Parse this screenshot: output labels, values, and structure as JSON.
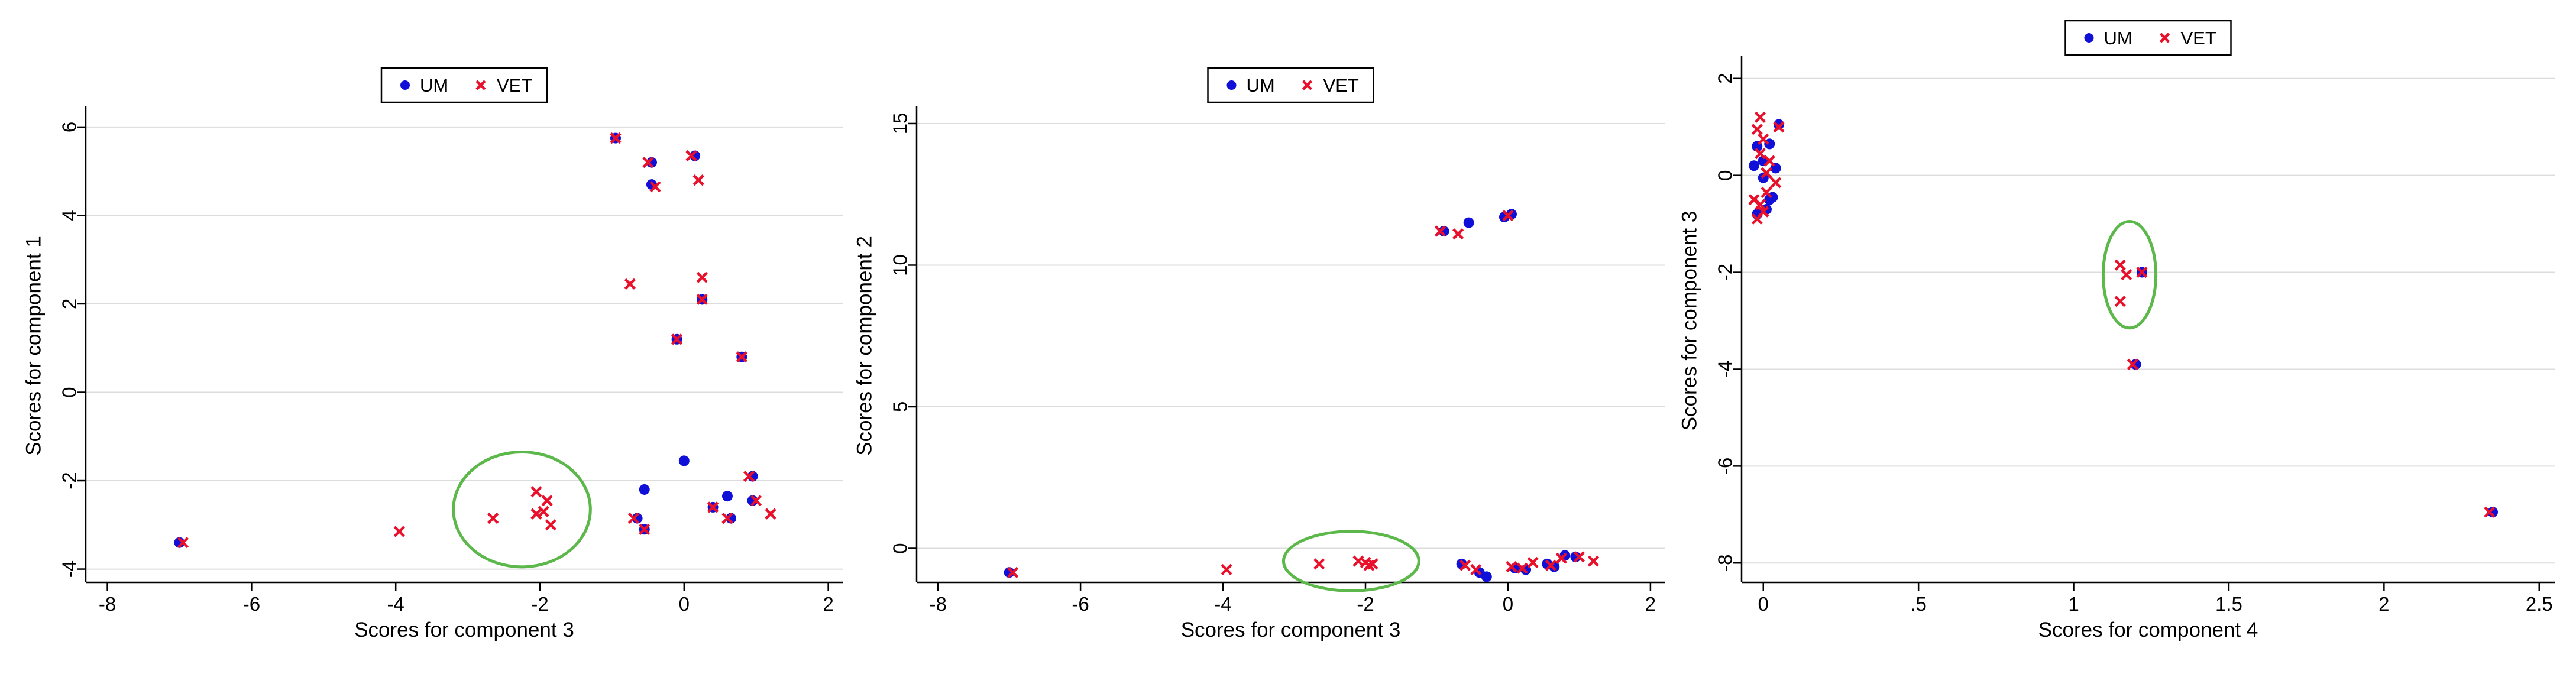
{
  "colors": {
    "um": "#1010d8",
    "vet": "#e8102a",
    "ellipse": "#5cb84a",
    "grid": "#dcdcdc",
    "axis": "#000000"
  },
  "legend_labels": {
    "um": "UM",
    "vet": "VET"
  },
  "chart_data": [
    {
      "type": "scatter",
      "xlabel": "Scores for component 3",
      "ylabel": "Scores for component 1",
      "xlim": [
        -8.3,
        2.2
      ],
      "ylim": [
        -4.3,
        6.4
      ],
      "xticks": [
        -8,
        -6,
        -4,
        -2,
        0,
        2
      ],
      "yticks": [
        -4,
        -2,
        0,
        2,
        4,
        6
      ],
      "grid": true,
      "legend": "top-center",
      "highlight_ellipse": {
        "cx": -2.25,
        "cy": -2.65,
        "rx": 0.95,
        "ry": 1.3
      },
      "series": [
        {
          "name": "UM",
          "marker": "circle",
          "points": [
            [
              -7.0,
              -3.4
            ],
            [
              -0.95,
              5.75
            ],
            [
              -0.45,
              5.2
            ],
            [
              -0.45,
              4.7
            ],
            [
              0.15,
              5.35
            ],
            [
              -0.1,
              1.2
            ],
            [
              0.8,
              0.8
            ],
            [
              0.25,
              2.1
            ],
            [
              0.0,
              -1.55
            ],
            [
              -0.55,
              -2.2
            ],
            [
              -0.65,
              -2.85
            ],
            [
              -0.55,
              -3.1
            ],
            [
              0.6,
              -2.35
            ],
            [
              0.4,
              -2.6
            ],
            [
              0.65,
              -2.85
            ],
            [
              0.95,
              -1.9
            ],
            [
              0.95,
              -2.45
            ]
          ]
        },
        {
          "name": "VET",
          "marker": "x",
          "points": [
            [
              -6.95,
              -3.4
            ],
            [
              -3.95,
              -3.15
            ],
            [
              -2.65,
              -2.85
            ],
            [
              -2.05,
              -2.25
            ],
            [
              -2.05,
              -2.75
            ],
            [
              -1.9,
              -2.45
            ],
            [
              -1.95,
              -2.7
            ],
            [
              -1.85,
              -3.0
            ],
            [
              -0.95,
              5.75
            ],
            [
              -0.5,
              5.2
            ],
            [
              -0.4,
              4.65
            ],
            [
              0.1,
              5.35
            ],
            [
              0.2,
              4.8
            ],
            [
              -0.75,
              2.45
            ],
            [
              0.25,
              2.6
            ],
            [
              0.25,
              2.1
            ],
            [
              -0.1,
              1.2
            ],
            [
              0.8,
              0.8
            ],
            [
              -0.7,
              -2.85
            ],
            [
              -0.55,
              -3.1
            ],
            [
              0.4,
              -2.6
            ],
            [
              0.6,
              -2.85
            ],
            [
              0.9,
              -1.9
            ],
            [
              1.0,
              -2.45
            ],
            [
              1.2,
              -2.75
            ]
          ]
        }
      ]
    },
    {
      "type": "scatter",
      "xlabel": "Scores for component 3",
      "ylabel": "Scores for component 2",
      "xlim": [
        -8.3,
        2.2
      ],
      "ylim": [
        -1.2,
        15.5
      ],
      "xticks": [
        -8,
        -6,
        -4,
        -2,
        0,
        2
      ],
      "yticks": [
        0,
        5,
        10,
        15
      ],
      "grid": true,
      "legend": "top-center",
      "highlight_ellipse": {
        "cx": -2.2,
        "cy": -0.45,
        "rx": 0.95,
        "ry": 1.05
      },
      "series": [
        {
          "name": "UM",
          "marker": "circle",
          "points": [
            [
              -7.0,
              -0.85
            ],
            [
              -0.9,
              11.2
            ],
            [
              -0.55,
              11.5
            ],
            [
              -0.05,
              11.7
            ],
            [
              0.05,
              11.8
            ],
            [
              -0.65,
              -0.55
            ],
            [
              -0.4,
              -0.85
            ],
            [
              -0.3,
              -1.0
            ],
            [
              0.1,
              -0.7
            ],
            [
              0.25,
              -0.75
            ],
            [
              0.55,
              -0.55
            ],
            [
              0.65,
              -0.65
            ],
            [
              0.8,
              -0.25
            ],
            [
              0.95,
              -0.3
            ]
          ]
        },
        {
          "name": "VET",
          "marker": "x",
          "points": [
            [
              -6.95,
              -0.85
            ],
            [
              -3.95,
              -0.75
            ],
            [
              -2.65,
              -0.55
            ],
            [
              -2.1,
              -0.45
            ],
            [
              -2.0,
              -0.5
            ],
            [
              -1.9,
              -0.55
            ],
            [
              -1.95,
              -0.6
            ],
            [
              -0.95,
              11.2
            ],
            [
              -0.7,
              11.1
            ],
            [
              0.0,
              11.75
            ],
            [
              -0.6,
              -0.6
            ],
            [
              -0.45,
              -0.75
            ],
            [
              0.05,
              -0.65
            ],
            [
              0.2,
              -0.7
            ],
            [
              0.35,
              -0.5
            ],
            [
              0.6,
              -0.6
            ],
            [
              0.75,
              -0.35
            ],
            [
              1.0,
              -0.3
            ],
            [
              1.2,
              -0.45
            ]
          ]
        }
      ]
    },
    {
      "type": "scatter",
      "xlabel": "Scores for component 4",
      "ylabel": "Scores for component 3",
      "xlim": [
        -0.07,
        2.55
      ],
      "ylim": [
        -8.4,
        2.4
      ],
      "xticks": [
        0,
        0.5,
        1,
        1.5,
        2,
        2.5
      ],
      "xtick_labels": [
        "0",
        ".5",
        "1",
        "1.5",
        "2",
        "2.5"
      ],
      "yticks": [
        -8,
        -6,
        -4,
        -2,
        0,
        2
      ],
      "grid": true,
      "legend": "top-center",
      "highlight_ellipse": {
        "cx": 1.18,
        "cy": -2.05,
        "rx": 0.085,
        "ry": 1.1
      },
      "series": [
        {
          "name": "UM",
          "marker": "circle",
          "points": [
            [
              -0.02,
              0.6
            ],
            [
              0.0,
              0.3
            ],
            [
              0.0,
              -0.05
            ],
            [
              0.02,
              0.65
            ],
            [
              0.04,
              0.15
            ],
            [
              0.05,
              1.05
            ],
            [
              0.03,
              -0.45
            ],
            [
              0.01,
              -0.7
            ],
            [
              -0.02,
              -0.8
            ],
            [
              0.02,
              -0.5
            ],
            [
              1.22,
              -2.0
            ],
            [
              1.2,
              -3.9
            ],
            [
              2.35,
              -6.95
            ],
            [
              -0.03,
              0.2
            ]
          ]
        },
        {
          "name": "VET",
          "marker": "x",
          "points": [
            [
              -0.01,
              1.2
            ],
            [
              -0.02,
              0.95
            ],
            [
              0.0,
              0.75
            ],
            [
              -0.01,
              0.45
            ],
            [
              0.01,
              0.05
            ],
            [
              0.04,
              -0.15
            ],
            [
              0.05,
              1.0
            ],
            [
              -0.03,
              -0.5
            ],
            [
              0.0,
              -0.75
            ],
            [
              -0.02,
              -0.9
            ],
            [
              0.01,
              -0.35
            ],
            [
              -0.01,
              -0.6
            ],
            [
              0.02,
              0.3
            ],
            [
              1.15,
              -1.85
            ],
            [
              1.17,
              -2.05
            ],
            [
              1.15,
              -2.6
            ],
            [
              1.22,
              -2.0
            ],
            [
              1.19,
              -3.9
            ],
            [
              2.34,
              -6.95
            ]
          ]
        }
      ]
    }
  ]
}
